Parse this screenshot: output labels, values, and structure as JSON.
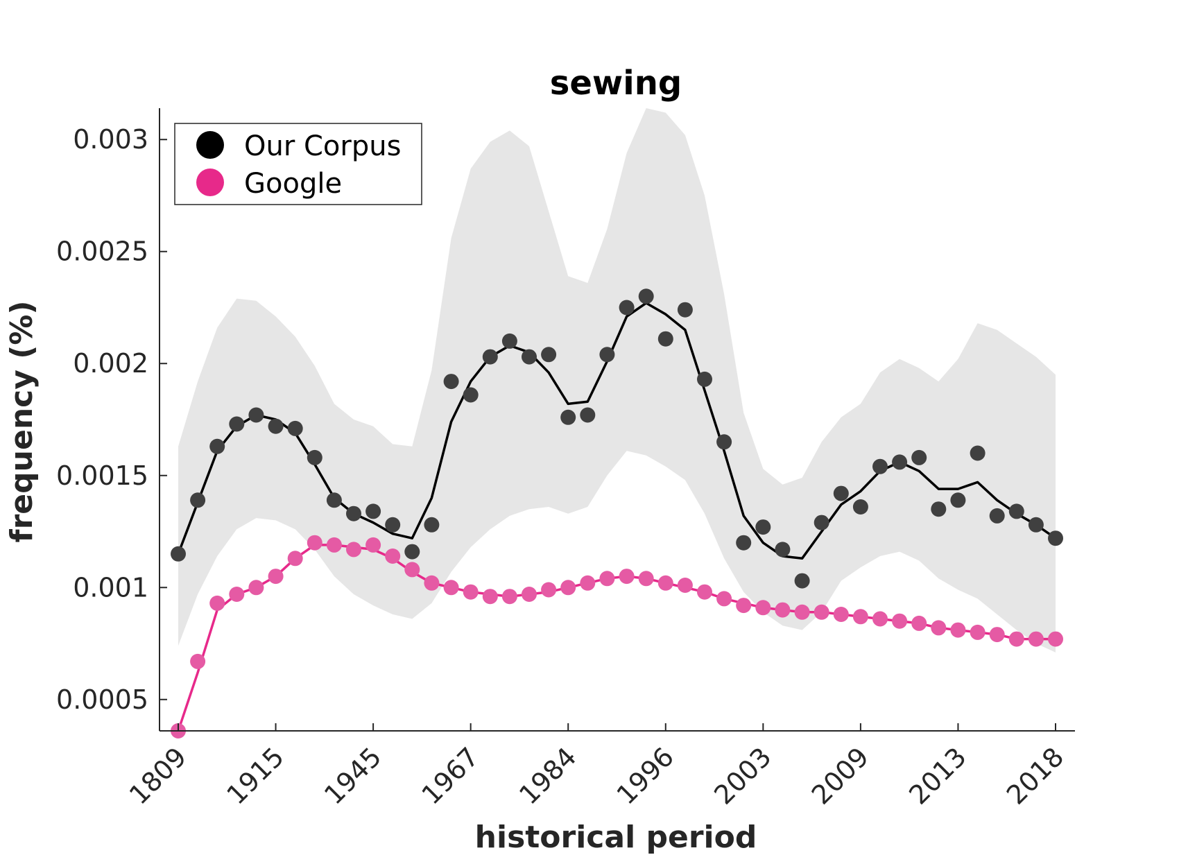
{
  "chart_data": {
    "type": "scatter",
    "title": "sewing",
    "xlabel": "historical period",
    "ylabel": "frequency (%)",
    "x_tick_labels": [
      "1809",
      "1915",
      "1945",
      "1967",
      "1984",
      "1996",
      "2003",
      "2009",
      "2013",
      "2018"
    ],
    "y_ticks": [
      0.0005,
      0.001,
      0.0015,
      0.002,
      0.0025,
      0.003
    ],
    "y_tick_labels": [
      "0.0005",
      "0.001",
      "0.0015",
      "0.002",
      "0.0025",
      "0.003"
    ],
    "ylim": [
      0.00036,
      0.00314
    ],
    "legend_position": "top-left",
    "grid": false,
    "series": [
      {
        "name": "Our Corpus",
        "color": "#000000",
        "marker_color": "#404040",
        "points": [
          0.00115,
          0.00139,
          0.00163,
          0.00173,
          0.00177,
          0.00172,
          0.00171,
          0.00158,
          0.00139,
          0.00133,
          0.00134,
          0.00128,
          0.00116,
          0.00128,
          0.00192,
          0.00186,
          0.00203,
          0.0021,
          0.00203,
          0.00204,
          0.00176,
          0.00177,
          0.00204,
          0.00225,
          0.0023,
          0.00211,
          0.00224,
          0.00193,
          0.00165,
          0.0012,
          0.00127,
          0.00117,
          0.00103,
          0.00129,
          0.00142,
          0.00136,
          0.00154,
          0.00156,
          0.00158,
          0.00135,
          0.00139,
          0.0016,
          0.00132,
          0.00134,
          0.00128,
          0.00122
        ],
        "smoothed": [
          0.00115,
          0.00138,
          0.00161,
          0.00172,
          0.00177,
          0.00175,
          0.00169,
          0.00155,
          0.0014,
          0.00133,
          0.00129,
          0.00124,
          0.00122,
          0.0014,
          0.00174,
          0.00192,
          0.00203,
          0.00208,
          0.00205,
          0.00196,
          0.00182,
          0.00183,
          0.00201,
          0.00221,
          0.00227,
          0.00222,
          0.00215,
          0.00188,
          0.00161,
          0.00132,
          0.0012,
          0.00114,
          0.00113,
          0.00125,
          0.00137,
          0.00143,
          0.00152,
          0.00156,
          0.00152,
          0.00144,
          0.00144,
          0.00147,
          0.00139,
          0.00133,
          0.00128,
          0.00122
        ],
        "band_upper": [
          0.00163,
          0.00192,
          0.00216,
          0.00229,
          0.00228,
          0.00221,
          0.00212,
          0.00199,
          0.00182,
          0.00175,
          0.00172,
          0.00164,
          0.00163,
          0.00197,
          0.00256,
          0.00287,
          0.00299,
          0.00304,
          0.00297,
          0.00268,
          0.00239,
          0.00236,
          0.0026,
          0.00294,
          0.00314,
          0.00312,
          0.00302,
          0.00275,
          0.00231,
          0.00178,
          0.00153,
          0.00146,
          0.00149,
          0.00165,
          0.00176,
          0.00182,
          0.00196,
          0.00202,
          0.00198,
          0.00192,
          0.00202,
          0.00218,
          0.00215,
          0.00209,
          0.00203,
          0.00195
        ],
        "band_lower": [
          0.00074,
          0.00097,
          0.00114,
          0.00126,
          0.00131,
          0.0013,
          0.00126,
          0.00117,
          0.00105,
          0.00097,
          0.00092,
          0.00088,
          0.00086,
          0.00093,
          0.00107,
          0.00118,
          0.00126,
          0.00132,
          0.00135,
          0.00136,
          0.00133,
          0.00136,
          0.0015,
          0.00161,
          0.00159,
          0.00154,
          0.00148,
          0.00133,
          0.00113,
          0.00098,
          0.00089,
          0.00083,
          0.00081,
          0.00089,
          0.00103,
          0.00109,
          0.00114,
          0.00116,
          0.00112,
          0.00104,
          0.00099,
          0.00095,
          0.00088,
          0.00081,
          0.00075,
          0.00071
        ]
      },
      {
        "name": "Google",
        "color": "#e7298a",
        "marker_color": "#e55aa4",
        "points": [
          0.00036,
          0.00067,
          0.00093,
          0.00097,
          0.001,
          0.00105,
          0.00113,
          0.0012,
          0.00119,
          0.00117,
          0.00119,
          0.00114,
          0.00108,
          0.00102,
          0.001,
          0.00098,
          0.00096,
          0.00096,
          0.00097,
          0.00099,
          0.001,
          0.00102,
          0.00104,
          0.00105,
          0.00104,
          0.00102,
          0.00101,
          0.00098,
          0.00095,
          0.00092,
          0.00091,
          0.0009,
          0.00089,
          0.00089,
          0.00088,
          0.00087,
          0.00086,
          0.00085,
          0.00084,
          0.00082,
          0.00081,
          0.0008,
          0.00079,
          0.00077,
          0.00077,
          0.00077
        ],
        "smoothed": [
          0.00036,
          0.00062,
          0.0009,
          0.00097,
          0.001,
          0.00105,
          0.00113,
          0.00119,
          0.00119,
          0.00118,
          0.00117,
          0.00113,
          0.00107,
          0.00102,
          0.001,
          0.00098,
          0.00097,
          0.00096,
          0.00097,
          0.00098,
          0.001,
          0.00102,
          0.00104,
          0.00105,
          0.00104,
          0.00102,
          0.001,
          0.00098,
          0.00095,
          0.00093,
          0.00091,
          0.0009,
          0.00089,
          0.00089,
          0.00088,
          0.00087,
          0.00086,
          0.00085,
          0.00084,
          0.00082,
          0.00081,
          0.0008,
          0.00079,
          0.00077,
          0.00077,
          0.00077
        ]
      }
    ]
  }
}
